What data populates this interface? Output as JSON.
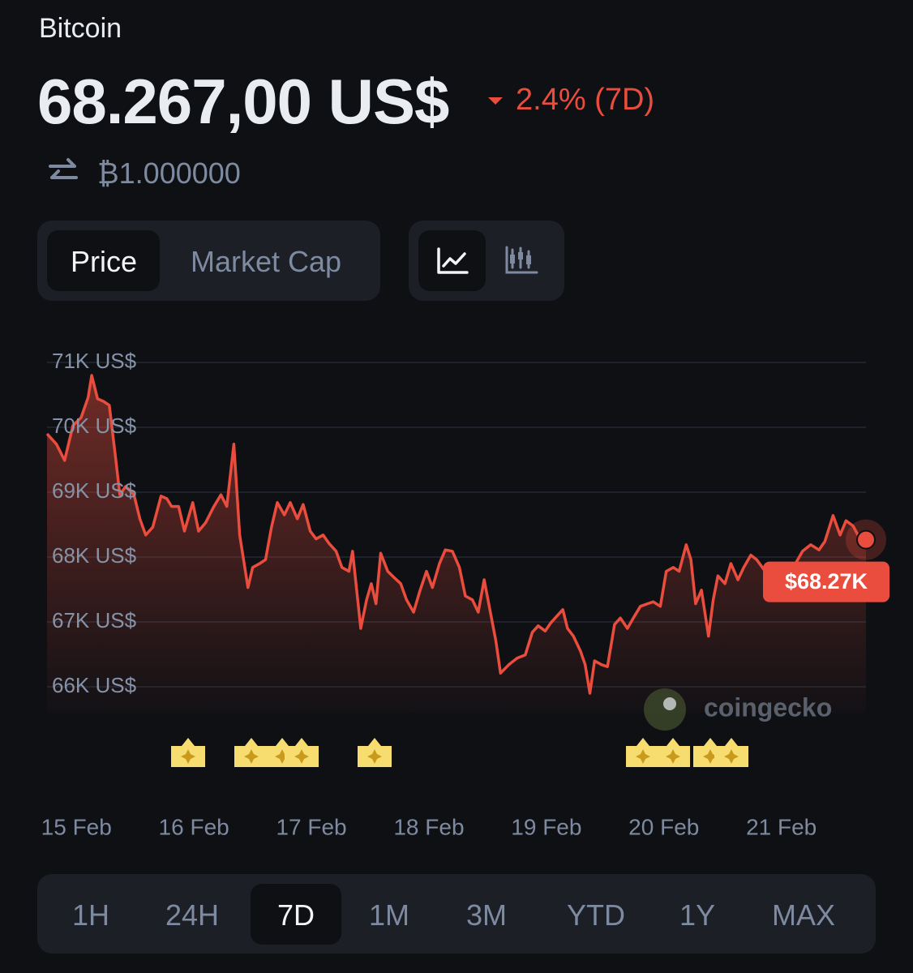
{
  "header": {
    "name": "Bitcoin",
    "price": "68.267,00 US$",
    "change": "2.4% (7D)",
    "conversion": "₿1.000000"
  },
  "metric_tabs": [
    "Price",
    "Market Cap"
  ],
  "watermark": "coingecko",
  "chart_data": {
    "type": "line",
    "color": "#ea4d3d",
    "x": [
      -0.25,
      -0.17,
      -0.1,
      -0.03,
      0.04,
      0.1,
      0.13,
      0.18,
      0.23,
      0.28,
      0.33,
      0.37,
      0.42,
      0.49,
      0.54,
      0.59,
      0.65,
      0.72,
      0.77,
      0.81,
      0.87,
      0.92,
      0.99,
      1.04,
      1.1,
      1.17,
      1.23,
      1.28,
      1.34,
      1.39,
      1.46,
      1.5,
      1.56,
      1.61,
      1.66,
      1.71,
      1.77,
      1.82,
      1.88,
      1.93,
      1.99,
      2.04,
      2.1,
      2.15,
      2.21,
      2.26,
      2.32,
      2.35,
      2.42,
      2.47,
      2.51,
      2.55,
      2.59,
      2.65,
      2.7,
      2.76,
      2.81,
      2.87,
      2.92,
      2.98,
      3.03,
      3.09,
      3.14,
      3.2,
      3.26,
      3.31,
      3.37,
      3.42,
      3.47,
      3.53,
      3.57,
      3.61,
      3.68,
      3.75,
      3.82,
      3.88,
      3.93,
      3.99,
      4.04,
      4.1,
      4.14,
      4.18,
      4.23,
      4.29,
      4.33,
      4.37,
      4.41,
      4.47,
      4.52,
      4.58,
      4.63,
      4.69,
      4.74,
      4.8,
      4.86,
      4.91,
      4.97,
      5.02,
      5.08,
      5.13,
      5.19,
      5.23,
      5.27,
      5.32,
      5.38,
      5.42,
      5.46,
      5.52,
      5.57,
      5.63,
      5.68,
      5.74,
      5.79,
      5.85,
      5.92,
      5.99,
      6.06,
      6.12,
      6.18,
      6.25,
      6.32,
      6.37,
      6.44,
      6.5,
      6.55,
      6.61,
      6.66,
      6.72
    ],
    "values": [
      69900,
      69740,
      69490,
      70025,
      70150,
      70460,
      70800,
      70440,
      70400,
      70340,
      69590,
      68960,
      69090,
      68960,
      68590,
      68340,
      68460,
      68940,
      68900,
      68780,
      68780,
      68400,
      68840,
      68400,
      68530,
      68780,
      68960,
      68780,
      69740,
      68340,
      67530,
      67840,
      67900,
      67960,
      68460,
      68840,
      68650,
      68840,
      68590,
      68810,
      68400,
      68280,
      68340,
      68210,
      68090,
      67840,
      67780,
      68090,
      66900,
      67340,
      67590,
      67280,
      68060,
      67780,
      67690,
      67590,
      67340,
      67150,
      67460,
      67780,
      67530,
      67900,
      68110,
      68090,
      67840,
      67400,
      67340,
      67150,
      67650,
      67090,
      66710,
      66210,
      66340,
      66440,
      66490,
      66840,
      66940,
      66860,
      66990,
      67110,
      67190,
      66900,
      66780,
      66550,
      66340,
      65900,
      66400,
      66340,
      66310,
      66960,
      67060,
      66900,
      67060,
      67240,
      67280,
      67310,
      67240,
      67780,
      67840,
      67780,
      68190,
      67960,
      67280,
      67490,
      66780,
      67340,
      67710,
      67590,
      67900,
      67650,
      67840,
      68030,
      67960,
      67810,
      67900,
      67780,
      67840,
      67900,
      68090,
      68190,
      68110,
      68240,
      68640,
      68340,
      68560,
      68480,
      68310,
      68267
    ],
    "end_label": "$68.27K",
    "xlim": [
      -0.25,
      6.72
    ],
    "xticks": [
      {
        "value": 0,
        "label": "15 Feb"
      },
      {
        "value": 1,
        "label": "16 Feb"
      },
      {
        "value": 2,
        "label": "17 Feb"
      },
      {
        "value": 3,
        "label": "18 Feb"
      },
      {
        "value": 4,
        "label": "19 Feb"
      },
      {
        "value": 5,
        "label": "20 Feb"
      },
      {
        "value": 6,
        "label": "21 Feb"
      }
    ],
    "ylim": [
      65600,
      71000
    ],
    "yticks": [
      {
        "value": 71000,
        "label": "71K US$"
      },
      {
        "value": 70000,
        "label": "70K US$"
      },
      {
        "value": 69000,
        "label": "69K US$"
      },
      {
        "value": 68000,
        "label": "68K US$"
      },
      {
        "value": 67000,
        "label": "67K US$"
      },
      {
        "value": 66000,
        "label": "66K US$"
      }
    ],
    "grid": true
  },
  "ranges": [
    "1H",
    "24H",
    "7D",
    "1M",
    "3M",
    "YTD",
    "1Y",
    "MAX"
  ]
}
